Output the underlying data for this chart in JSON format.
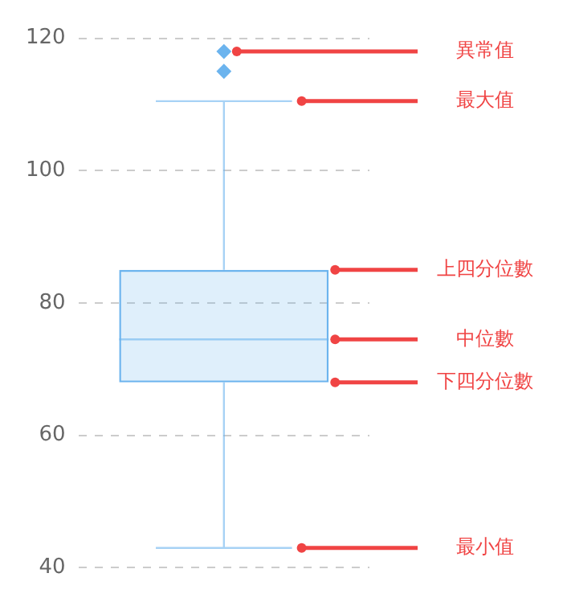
{
  "chart_data": {
    "type": "box",
    "categories": [
      null
    ],
    "color": "#6cb4ee",
    "boxes": [
      {
        "low": 43,
        "q1": 68,
        "median": 74.5,
        "q3": 85,
        "high": 110.5,
        "outliers": [
          118,
          115
        ]
      }
    ],
    "ylim": [
      40,
      120
    ],
    "yticks": [
      40,
      60,
      80,
      100,
      120
    ],
    "grid": "y",
    "tick_labels": "y",
    "legend": false,
    "annotations": [
      "異常值",
      "最大值",
      "上四分位數",
      "中位數",
      "下四分位數",
      "最小值"
    ]
  }
}
